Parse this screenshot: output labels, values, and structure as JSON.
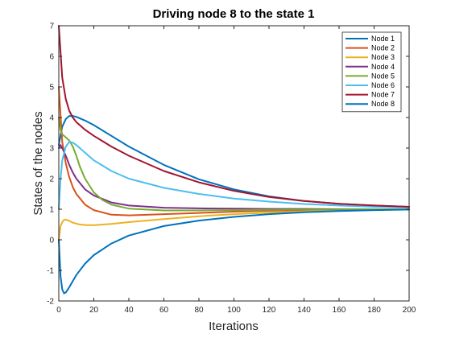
{
  "chart_data": {
    "type": "line",
    "title": "Driving node 8 to the state 1",
    "xlabel": "Iterations",
    "ylabel": "States of the nodes",
    "xlim": [
      0,
      200
    ],
    "ylim": [
      -2,
      7
    ],
    "xticks": [
      "0",
      "20",
      "40",
      "60",
      "80",
      "100",
      "120",
      "140",
      "160",
      "180",
      "200"
    ],
    "yticks": [
      "-2",
      "-1",
      "0",
      "1",
      "2",
      "3",
      "4",
      "5",
      "6",
      "7"
    ],
    "grid": false,
    "legend_position": "top-right",
    "series": [
      {
        "name": "Node 1",
        "color": "#0072BD",
        "x": [
          0,
          2,
          4,
          6,
          8,
          10,
          15,
          20,
          30,
          40,
          60,
          80,
          100,
          120,
          140,
          160,
          180,
          200
        ],
        "y": [
          3.1,
          3.7,
          3.95,
          4.05,
          4.05,
          4.02,
          3.9,
          3.75,
          3.4,
          3.05,
          2.45,
          1.98,
          1.65,
          1.42,
          1.27,
          1.18,
          1.12,
          1.08
        ]
      },
      {
        "name": "Node 2",
        "color": "#D95319",
        "x": [
          0,
          2,
          4,
          6,
          8,
          10,
          15,
          20,
          30,
          40,
          60,
          80,
          100,
          120,
          140,
          160,
          180,
          200
        ],
        "y": [
          5.0,
          3.2,
          2.5,
          2.05,
          1.72,
          1.5,
          1.15,
          0.97,
          0.82,
          0.8,
          0.84,
          0.88,
          0.92,
          0.95,
          0.97,
          0.98,
          0.99,
          1.0
        ]
      },
      {
        "name": "Node 3",
        "color": "#EDB120",
        "x": [
          0,
          1,
          2,
          3,
          4,
          6,
          8,
          12,
          16,
          20,
          30,
          40,
          60,
          80,
          100,
          120,
          140,
          160,
          180,
          200
        ],
        "y": [
          0.0,
          0.45,
          0.58,
          0.65,
          0.66,
          0.62,
          0.56,
          0.5,
          0.48,
          0.48,
          0.52,
          0.58,
          0.68,
          0.77,
          0.84,
          0.89,
          0.93,
          0.96,
          0.98,
          0.99
        ]
      },
      {
        "name": "Node 4",
        "color": "#7E2F8E",
        "x": [
          0,
          1,
          2,
          4,
          6,
          8,
          10,
          15,
          20,
          30,
          40,
          60,
          80,
          100,
          120,
          140,
          160,
          180,
          200
        ],
        "y": [
          3.0,
          3.1,
          3.0,
          2.75,
          2.45,
          2.2,
          2.0,
          1.65,
          1.45,
          1.22,
          1.12,
          1.05,
          1.03,
          1.02,
          1.01,
          1.01,
          1.0,
          1.0,
          1.0
        ]
      },
      {
        "name": "Node 5",
        "color": "#77AC30",
        "x": [
          0,
          1,
          2,
          4,
          6,
          8,
          10,
          12,
          15,
          20,
          25,
          30,
          40,
          60,
          80,
          100,
          120,
          140,
          160,
          180,
          200
        ],
        "y": [
          4.0,
          3.6,
          3.45,
          3.35,
          3.25,
          3.05,
          2.75,
          2.4,
          2.0,
          1.55,
          1.3,
          1.15,
          1.02,
          0.96,
          0.96,
          0.97,
          0.98,
          0.99,
          0.99,
          1.0,
          1.0
        ]
      },
      {
        "name": "Node 6",
        "color": "#4DBEEE",
        "x": [
          0,
          1,
          2,
          4,
          6,
          8,
          10,
          12,
          15,
          20,
          30,
          40,
          60,
          80,
          100,
          120,
          140,
          160,
          180,
          200
        ],
        "y": [
          1.0,
          2.0,
          2.6,
          3.05,
          3.2,
          3.18,
          3.1,
          3.0,
          2.85,
          2.6,
          2.25,
          2.0,
          1.7,
          1.5,
          1.35,
          1.25,
          1.17,
          1.12,
          1.08,
          1.06
        ]
      },
      {
        "name": "Node 7",
        "color": "#A2142F",
        "x": [
          0,
          2,
          4,
          6,
          8,
          10,
          15,
          20,
          30,
          40,
          60,
          80,
          100,
          120,
          140,
          160,
          180,
          200
        ],
        "y": [
          7.0,
          5.3,
          4.6,
          4.22,
          4.0,
          3.85,
          3.6,
          3.4,
          3.05,
          2.75,
          2.25,
          1.88,
          1.6,
          1.4,
          1.27,
          1.18,
          1.12,
          1.08
        ]
      },
      {
        "name": "Node 8",
        "color": "#0072BD",
        "x": [
          0,
          1,
          2,
          3,
          4,
          6,
          8,
          10,
          15,
          20,
          30,
          40,
          60,
          80,
          100,
          120,
          140,
          160,
          180,
          200
        ],
        "y": [
          0.0,
          -1.2,
          -1.62,
          -1.75,
          -1.72,
          -1.55,
          -1.35,
          -1.15,
          -0.78,
          -0.5,
          -0.12,
          0.14,
          0.45,
          0.63,
          0.75,
          0.84,
          0.9,
          0.94,
          0.97,
          0.99
        ]
      }
    ]
  }
}
